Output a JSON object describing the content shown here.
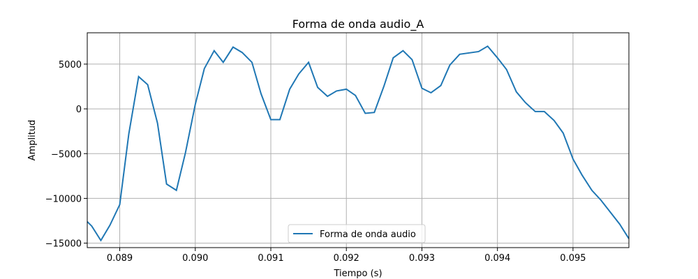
{
  "chart_data": {
    "type": "line",
    "title": "Forma de onda audio_A",
    "xlabel": "Tiempo (s)",
    "ylabel": "Amplitud",
    "xlim": [
      0.08857,
      0.09574
    ],
    "ylim": [
      -15500,
      8500
    ],
    "grid": true,
    "legend_position": "lower center",
    "xticks": [
      0.089,
      0.09,
      0.091,
      0.092,
      0.093,
      0.094,
      0.095
    ],
    "xtick_labels": [
      "0.089",
      "0.090",
      "0.091",
      "0.092",
      "0.093",
      "0.094",
      "0.095"
    ],
    "yticks": [
      5000,
      0,
      -5000,
      -10000,
      -15000
    ],
    "ytick_labels": [
      "5000",
      "0",
      "−10000",
      "−15000"
    ],
    "ytick_labels_full": [
      "5000",
      "0",
      "−5000",
      "−10000",
      "−15000"
    ],
    "series": [
      {
        "name": "Forma de onda audio",
        "color": "#1f77b4",
        "x": [
          0.08857,
          0.08863,
          0.08875,
          0.08887,
          0.089,
          0.08912,
          0.08925,
          0.08937,
          0.0895,
          0.08962,
          0.08975,
          0.08987,
          0.09,
          0.09012,
          0.09025,
          0.09037,
          0.0905,
          0.09062,
          0.09075,
          0.09087,
          0.091,
          0.09112,
          0.09125,
          0.09137,
          0.0915,
          0.09162,
          0.09175,
          0.09187,
          0.092,
          0.09212,
          0.09225,
          0.09237,
          0.0925,
          0.09262,
          0.09275,
          0.09287,
          0.093,
          0.09312,
          0.09325,
          0.09337,
          0.0935,
          0.09375,
          0.09387,
          0.094,
          0.09412,
          0.09425,
          0.09437,
          0.0945,
          0.09462,
          0.09475,
          0.09487,
          0.095,
          0.09512,
          0.09525,
          0.09537,
          0.0955,
          0.09562,
          0.09574
        ],
        "y": [
          -12600,
          -13100,
          -14700,
          -13000,
          -10700,
          -2800,
          3600,
          2700,
          -1600,
          -8400,
          -9100,
          -4900,
          500,
          4500,
          6500,
          5200,
          6900,
          6300,
          5200,
          1700,
          -1200,
          -1200,
          2200,
          3900,
          5200,
          2400,
          1400,
          2000,
          2200,
          1500,
          -500,
          -400,
          2600,
          5700,
          6500,
          5500,
          2300,
          1800,
          2600,
          4900,
          6100,
          6400,
          7000,
          5700,
          4400,
          1900,
          700,
          -300,
          -300,
          -1300,
          -2700,
          -5600,
          -7400,
          -9100,
          -10200,
          -11600,
          -12900,
          -14500
        ]
      }
    ]
  }
}
